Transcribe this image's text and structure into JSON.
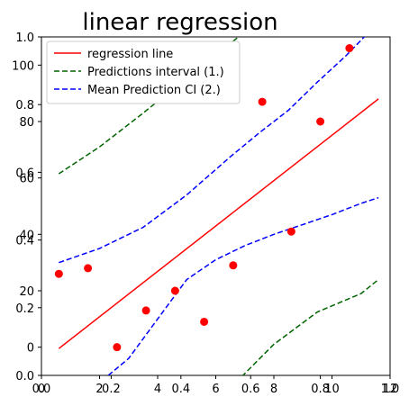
{
  "chart_data": {
    "type": "scatter",
    "title": "linear regression",
    "xlabel": "",
    "ylabel": "",
    "xlim": [
      0,
      12
    ],
    "ylim": [
      -10,
      110
    ],
    "x_ticks": [
      "0",
      "2",
      "4",
      "6",
      "8",
      "10",
      "12"
    ],
    "y_ticks": [
      "0",
      "20",
      "40",
      "60",
      "80",
      "100"
    ],
    "overlay_axis": {
      "xlim": [
        0,
        1
      ],
      "ylim": [
        0,
        1
      ],
      "x_ticks": [
        "0.0",
        "0.2",
        "0.4",
        "0.6",
        "0.8",
        "1.0"
      ],
      "y_ticks": [
        "0.0",
        "0.2",
        "0.4",
        "0.6",
        "0.8",
        "1.0"
      ]
    },
    "points": [
      {
        "x": 0.6,
        "y": 26
      },
      {
        "x": 1.6,
        "y": 28
      },
      {
        "x": 2.6,
        "y": 0
      },
      {
        "x": 3.6,
        "y": 13
      },
      {
        "x": 4.6,
        "y": 20
      },
      {
        "x": 5.6,
        "y": 9
      },
      {
        "x": 6.6,
        "y": 29
      },
      {
        "x": 7.6,
        "y": 87
      },
      {
        "x": 8.6,
        "y": 41
      },
      {
        "x": 9.6,
        "y": 80
      },
      {
        "x": 10.6,
        "y": 106
      }
    ],
    "series": [
      {
        "name": "regression line",
        "color": "#ff0000",
        "style": "solid",
        "x": [
          0.6,
          11.6
        ],
        "y": [
          -0.5,
          88
        ]
      },
      {
        "name": "Predictions interval (1.)",
        "color": "#006400",
        "style": "dashed",
        "x_upper": [
          0.6,
          2,
          3.5,
          5,
          6,
          7.5
        ],
        "upper": [
          61.5,
          71,
          83,
          95.5,
          103.5,
          116
        ],
        "x_lower": [
          6.5,
          8,
          9.5,
          11,
          11.6
        ],
        "lower": [
          -14.5,
          1,
          12.5,
          19,
          24
        ]
      },
      {
        "name": "Mean Prediction CI (2.)",
        "color": "#0000ff",
        "style": "dashed",
        "x_upper": [
          0.6,
          2,
          3.5,
          5,
          6.5,
          7.5,
          8.5,
          9.5,
          10.5,
          11.3
        ],
        "upper": [
          30,
          35,
          42.5,
          54,
          67.5,
          76,
          84,
          94,
          103.5,
          112
        ],
        "x_lower": [
          2.3,
          3,
          4,
          5,
          6,
          7,
          8,
          9,
          10,
          11,
          11.6
        ],
        "lower": [
          -10,
          -4,
          10,
          24,
          31,
          36,
          40,
          43.5,
          47,
          51,
          53
        ]
      }
    ],
    "legend": {
      "position": "upper left",
      "entries": [
        "regression line",
        "Predictions interval (1.)",
        "Mean Prediction CI (2.)"
      ]
    },
    "marker_color": "#ff0000"
  }
}
